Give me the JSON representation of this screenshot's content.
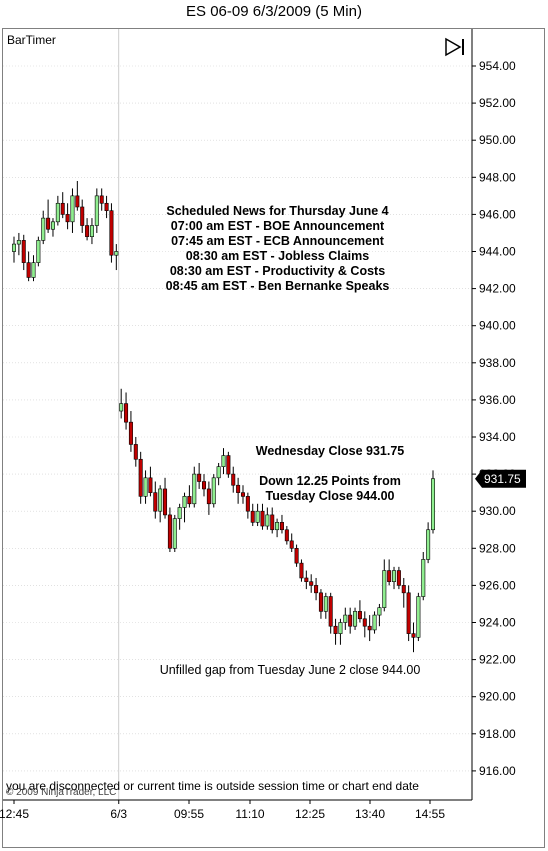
{
  "window": {
    "title": "ES 06-09  6/3/2009 (5 Min)"
  },
  "indicator": {
    "label": "BarTimer"
  },
  "footer": {
    "copyright": "© 2009 NinjaTrader, LLC",
    "status": "you are disconnected or current time is outside session time or chart end date"
  },
  "annotations": {
    "news_lines": [
      "Scheduled News for Thursday June 4",
      "07:00 am EST - BOE Announcement",
      "07:45 am EST - ECB Announcement",
      "08:30 am EST - Jobless Claims",
      "08:30 am EST - Productivity & Costs",
      "08:45 am EST - Ben Bernanke Speaks"
    ],
    "close_line1": "Wednesday Close 931.75",
    "close_line2": "Down 12.25 Points from",
    "close_line3": "Tuesday Close 944.00",
    "gap_note": "Unfilled gap from Tuesday June 2 close 944.00"
  },
  "colors": {
    "up": "#90ee90",
    "down": "#c00000",
    "wick": "#000000",
    "grid": "#d0d0d0",
    "price_tag_bg": "#000000",
    "price_tag_fg": "#ffffff"
  },
  "chart_data": {
    "type": "candlestick",
    "instrument": "ES 06-09",
    "interval": "5 Min",
    "ylim": [
      915,
      955
    ],
    "y_ticks": [
      "954.00",
      "952.00",
      "950.00",
      "948.00",
      "946.00",
      "944.00",
      "942.00",
      "940.00",
      "938.00",
      "936.00",
      "934.00",
      "932.00",
      "930.00",
      "928.00",
      "926.00",
      "924.00",
      "922.00",
      "920.00",
      "918.00",
      "916.00"
    ],
    "x_tick_labels": [
      "12:45",
      "6/3",
      "09:55",
      "11:10",
      "12:25",
      "13:40",
      "14:55"
    ],
    "last_price": "931.75",
    "session_break_after_index": 21,
    "candles": [
      {
        "o": 944.0,
        "h": 944.8,
        "l": 943.4,
        "c": 944.4
      },
      {
        "o": 944.4,
        "h": 945.0,
        "l": 943.8,
        "c": 944.6
      },
      {
        "o": 944.6,
        "h": 944.9,
        "l": 943.0,
        "c": 943.4
      },
      {
        "o": 943.4,
        "h": 944.0,
        "l": 942.4,
        "c": 942.6
      },
      {
        "o": 942.6,
        "h": 943.8,
        "l": 942.4,
        "c": 943.4
      },
      {
        "o": 943.4,
        "h": 944.8,
        "l": 943.2,
        "c": 944.6
      },
      {
        "o": 944.6,
        "h": 946.2,
        "l": 944.4,
        "c": 945.8
      },
      {
        "o": 945.8,
        "h": 946.8,
        "l": 945.0,
        "c": 945.2
      },
      {
        "o": 945.2,
        "h": 945.8,
        "l": 944.8,
        "c": 945.6
      },
      {
        "o": 945.6,
        "h": 947.0,
        "l": 945.4,
        "c": 946.6
      },
      {
        "o": 946.6,
        "h": 947.2,
        "l": 945.8,
        "c": 946.0
      },
      {
        "o": 946.0,
        "h": 946.6,
        "l": 945.2,
        "c": 945.6
      },
      {
        "o": 945.6,
        "h": 947.4,
        "l": 945.0,
        "c": 947.0
      },
      {
        "o": 947.0,
        "h": 947.8,
        "l": 946.2,
        "c": 946.4
      },
      {
        "o": 946.4,
        "h": 946.8,
        "l": 945.0,
        "c": 945.4
      },
      {
        "o": 945.4,
        "h": 945.8,
        "l": 944.6,
        "c": 944.8
      },
      {
        "o": 944.8,
        "h": 945.8,
        "l": 944.4,
        "c": 945.4
      },
      {
        "o": 945.4,
        "h": 947.4,
        "l": 945.0,
        "c": 947.0
      },
      {
        "o": 947.0,
        "h": 947.4,
        "l": 946.2,
        "c": 946.6
      },
      {
        "o": 946.6,
        "h": 947.0,
        "l": 945.8,
        "c": 946.2
      },
      {
        "o": 946.2,
        "h": 946.6,
        "l": 943.4,
        "c": 943.8
      },
      {
        "o": 943.8,
        "h": 944.4,
        "l": 943.0,
        "c": 944.0
      },
      {
        "o": 935.4,
        "h": 936.6,
        "l": 935.0,
        "c": 935.8
      },
      {
        "o": 935.8,
        "h": 936.4,
        "l": 934.4,
        "c": 934.8
      },
      {
        "o": 934.8,
        "h": 935.4,
        "l": 933.2,
        "c": 933.6
      },
      {
        "o": 933.6,
        "h": 934.0,
        "l": 932.4,
        "c": 932.8
      },
      {
        "o": 932.8,
        "h": 933.2,
        "l": 930.4,
        "c": 930.8
      },
      {
        "o": 930.8,
        "h": 932.2,
        "l": 930.4,
        "c": 931.8
      },
      {
        "o": 931.8,
        "h": 932.4,
        "l": 930.8,
        "c": 931.0
      },
      {
        "o": 931.0,
        "h": 931.6,
        "l": 929.6,
        "c": 930.0
      },
      {
        "o": 930.0,
        "h": 931.4,
        "l": 929.4,
        "c": 931.2
      },
      {
        "o": 931.2,
        "h": 931.8,
        "l": 929.6,
        "c": 929.8
      },
      {
        "o": 929.8,
        "h": 930.2,
        "l": 927.8,
        "c": 928.0
      },
      {
        "o": 928.0,
        "h": 929.8,
        "l": 927.8,
        "c": 929.6
      },
      {
        "o": 929.6,
        "h": 930.4,
        "l": 929.0,
        "c": 930.2
      },
      {
        "o": 930.2,
        "h": 931.0,
        "l": 929.4,
        "c": 930.8
      },
      {
        "o": 930.8,
        "h": 931.4,
        "l": 930.2,
        "c": 930.4
      },
      {
        "o": 930.4,
        "h": 932.4,
        "l": 930.2,
        "c": 932.0
      },
      {
        "o": 932.0,
        "h": 932.6,
        "l": 931.2,
        "c": 931.6
      },
      {
        "o": 931.6,
        "h": 932.0,
        "l": 930.8,
        "c": 931.2
      },
      {
        "o": 931.2,
        "h": 931.6,
        "l": 929.8,
        "c": 930.4
      },
      {
        "o": 930.4,
        "h": 932.0,
        "l": 930.2,
        "c": 931.8
      },
      {
        "o": 931.8,
        "h": 932.6,
        "l": 931.4,
        "c": 932.4
      },
      {
        "o": 932.4,
        "h": 933.4,
        "l": 932.0,
        "c": 933.0
      },
      {
        "o": 933.0,
        "h": 933.2,
        "l": 931.8,
        "c": 932.0
      },
      {
        "o": 932.0,
        "h": 932.4,
        "l": 931.0,
        "c": 931.4
      },
      {
        "o": 931.4,
        "h": 931.8,
        "l": 930.4,
        "c": 931.0
      },
      {
        "o": 931.0,
        "h": 931.4,
        "l": 930.4,
        "c": 930.8
      },
      {
        "o": 930.8,
        "h": 931.0,
        "l": 929.6,
        "c": 930.0
      },
      {
        "o": 930.0,
        "h": 930.4,
        "l": 929.2,
        "c": 929.4
      },
      {
        "o": 929.4,
        "h": 930.4,
        "l": 929.2,
        "c": 930.0
      },
      {
        "o": 930.0,
        "h": 930.4,
        "l": 929.0,
        "c": 929.2
      },
      {
        "o": 929.2,
        "h": 930.2,
        "l": 929.0,
        "c": 929.8
      },
      {
        "o": 929.8,
        "h": 930.2,
        "l": 928.8,
        "c": 929.0
      },
      {
        "o": 929.0,
        "h": 929.6,
        "l": 928.6,
        "c": 929.4
      },
      {
        "o": 929.4,
        "h": 929.8,
        "l": 928.8,
        "c": 929.0
      },
      {
        "o": 929.0,
        "h": 929.2,
        "l": 928.2,
        "c": 928.4
      },
      {
        "o": 928.4,
        "h": 928.8,
        "l": 927.8,
        "c": 928.0
      },
      {
        "o": 928.0,
        "h": 928.2,
        "l": 927.0,
        "c": 927.2
      },
      {
        "o": 927.2,
        "h": 927.4,
        "l": 926.2,
        "c": 926.4
      },
      {
        "o": 926.4,
        "h": 926.8,
        "l": 925.8,
        "c": 926.2
      },
      {
        "o": 926.2,
        "h": 926.6,
        "l": 925.6,
        "c": 926.0
      },
      {
        "o": 926.0,
        "h": 926.4,
        "l": 925.2,
        "c": 925.6
      },
      {
        "o": 925.6,
        "h": 925.8,
        "l": 924.2,
        "c": 924.6
      },
      {
        "o": 924.6,
        "h": 925.6,
        "l": 924.2,
        "c": 925.4
      },
      {
        "o": 925.4,
        "h": 925.6,
        "l": 923.4,
        "c": 923.8
      },
      {
        "o": 923.8,
        "h": 924.2,
        "l": 922.8,
        "c": 923.4
      },
      {
        "o": 923.4,
        "h": 924.2,
        "l": 922.8,
        "c": 924.0
      },
      {
        "o": 924.0,
        "h": 924.8,
        "l": 923.6,
        "c": 924.4
      },
      {
        "o": 924.4,
        "h": 924.8,
        "l": 923.4,
        "c": 923.8
      },
      {
        "o": 923.8,
        "h": 924.8,
        "l": 923.6,
        "c": 924.6
      },
      {
        "o": 924.6,
        "h": 925.2,
        "l": 924.0,
        "c": 924.2
      },
      {
        "o": 924.2,
        "h": 924.6,
        "l": 923.2,
        "c": 923.8
      },
      {
        "o": 923.8,
        "h": 924.4,
        "l": 923.0,
        "c": 923.6
      },
      {
        "o": 923.6,
        "h": 924.6,
        "l": 923.4,
        "c": 924.4
      },
      {
        "o": 924.4,
        "h": 925.0,
        "l": 923.8,
        "c": 924.8
      },
      {
        "o": 924.8,
        "h": 927.4,
        "l": 924.6,
        "c": 926.8
      },
      {
        "o": 926.8,
        "h": 927.4,
        "l": 926.0,
        "c": 926.2
      },
      {
        "o": 926.2,
        "h": 927.0,
        "l": 925.8,
        "c": 926.8
      },
      {
        "o": 926.8,
        "h": 927.0,
        "l": 925.8,
        "c": 926.0
      },
      {
        "o": 926.0,
        "h": 926.4,
        "l": 924.8,
        "c": 925.6
      },
      {
        "o": 925.6,
        "h": 926.0,
        "l": 923.0,
        "c": 923.4
      },
      {
        "o": 923.4,
        "h": 924.0,
        "l": 922.4,
        "c": 923.2
      },
      {
        "o": 923.2,
        "h": 925.6,
        "l": 923.0,
        "c": 925.4
      },
      {
        "o": 925.4,
        "h": 927.8,
        "l": 925.2,
        "c": 927.4
      },
      {
        "o": 927.4,
        "h": 929.4,
        "l": 927.2,
        "c": 929.0
      },
      {
        "o": 929.0,
        "h": 932.2,
        "l": 928.8,
        "c": 931.75
      }
    ]
  }
}
